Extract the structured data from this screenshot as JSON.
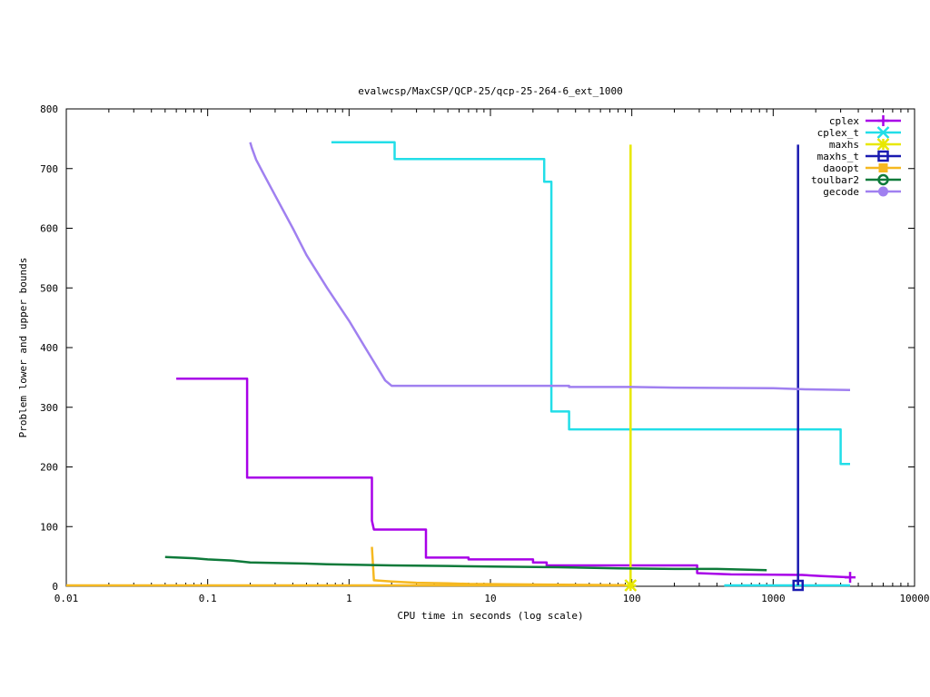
{
  "chart_data": {
    "type": "line",
    "title": "evalwcsp/MaxCSP/QCP-25/qcp-25-264-6_ext_1000",
    "xlabel": "CPU time in seconds (log scale)",
    "ylabel": "Problem lower and upper bounds",
    "xscale": "log",
    "xlim": [
      0.01,
      10000
    ],
    "ylim": [
      0,
      800
    ],
    "xticks": [
      0.01,
      0.1,
      1,
      10,
      100,
      1000,
      10000
    ],
    "xtick_labels": [
      "0.01",
      "0.1",
      "1",
      "10",
      "100",
      "1000",
      "10000"
    ],
    "yticks": [
      0,
      100,
      200,
      300,
      400,
      500,
      600,
      700,
      800
    ],
    "ytick_labels": [
      "0",
      "100",
      "200",
      "300",
      "400",
      "500",
      "600",
      "700",
      "800"
    ],
    "grid": false,
    "legend_position": "top-right",
    "series": [
      {
        "name": "cplex",
        "color": "#a800e8",
        "marker": "plus",
        "points": [
          [
            0.06,
            348
          ],
          [
            0.19,
            348
          ],
          [
            0.19,
            182
          ],
          [
            1.45,
            182
          ],
          [
            1.45,
            110
          ],
          [
            1.5,
            95
          ],
          [
            3.5,
            95
          ],
          [
            3.5,
            48
          ],
          [
            7,
            48
          ],
          [
            7,
            45
          ],
          [
            20,
            45
          ],
          [
            20,
            40
          ],
          [
            25,
            40
          ],
          [
            25,
            35
          ],
          [
            290,
            35
          ],
          [
            290,
            22
          ],
          [
            500,
            20
          ],
          [
            1600,
            19
          ],
          [
            2200,
            17
          ],
          [
            3500,
            15
          ]
        ],
        "markers_at": [
          [
            3500,
            15
          ]
        ]
      },
      {
        "name": "cplex_t",
        "color": "#22dee8",
        "marker": "x",
        "points": [
          [
            0.75,
            744
          ],
          [
            2.1,
            744
          ],
          [
            2.1,
            716
          ],
          [
            24,
            716
          ],
          [
            24,
            678
          ],
          [
            27,
            678
          ],
          [
            27,
            293
          ],
          [
            36,
            293
          ],
          [
            36,
            263
          ],
          [
            3000,
            263
          ],
          [
            3000,
            205
          ],
          [
            3500,
            205
          ]
        ],
        "lower_points": [
          [
            450,
            1
          ],
          [
            3500,
            1
          ]
        ],
        "markers_at": []
      },
      {
        "name": "maxhs",
        "color": "#e8e800",
        "marker": "star",
        "points": [
          [
            98,
            740
          ],
          [
            98,
            1
          ]
        ],
        "markers_at": [
          [
            98,
            1
          ]
        ]
      },
      {
        "name": "maxhs_t",
        "color": "#1a1ab0",
        "marker": "square",
        "points": [
          [
            1500,
            740
          ],
          [
            1500,
            1
          ]
        ],
        "markers_at": [
          [
            1500,
            1
          ]
        ]
      },
      {
        "name": "daoopt",
        "color": "#f5b820",
        "marker": "filled-square",
        "points": [
          [
            1.45,
            66
          ],
          [
            1.5,
            10
          ],
          [
            2,
            8
          ],
          [
            3,
            6
          ],
          [
            5,
            5
          ],
          [
            7,
            4
          ],
          [
            20,
            3
          ],
          [
            90,
            2
          ]
        ],
        "lower_points": [
          [
            0.01,
            0
          ],
          [
            90,
            0
          ]
        ],
        "markers_at": []
      },
      {
        "name": "toulbar2",
        "color": "#0e7a3a",
        "marker": "circle",
        "points": [
          [
            0.05,
            49
          ],
          [
            0.08,
            47
          ],
          [
            0.1,
            45
          ],
          [
            0.15,
            43
          ],
          [
            0.2,
            40
          ],
          [
            0.5,
            38
          ],
          [
            0.7,
            37
          ],
          [
            2,
            35
          ],
          [
            5,
            34
          ],
          [
            10,
            33
          ],
          [
            30,
            32
          ],
          [
            80,
            30
          ],
          [
            200,
            29
          ],
          [
            400,
            29
          ],
          [
            900,
            27
          ]
        ],
        "markers_at": []
      },
      {
        "name": "gecode",
        "color": "#a080f0",
        "marker": "filled-circle",
        "points": [
          [
            0.2,
            744
          ],
          [
            0.205,
            735
          ],
          [
            0.22,
            715
          ],
          [
            0.25,
            690
          ],
          [
            0.3,
            655
          ],
          [
            0.4,
            600
          ],
          [
            0.5,
            555
          ],
          [
            0.7,
            500
          ],
          [
            1.0,
            445
          ],
          [
            1.3,
            400
          ],
          [
            1.6,
            365
          ],
          [
            1.8,
            345
          ],
          [
            2.0,
            336
          ],
          [
            3,
            336
          ],
          [
            10,
            336
          ],
          [
            36,
            336
          ],
          [
            36,
            334
          ],
          [
            100,
            334
          ],
          [
            200,
            333
          ],
          [
            1000,
            332
          ],
          [
            1700,
            330
          ],
          [
            3500,
            329
          ]
        ],
        "markers_at": []
      }
    ]
  }
}
